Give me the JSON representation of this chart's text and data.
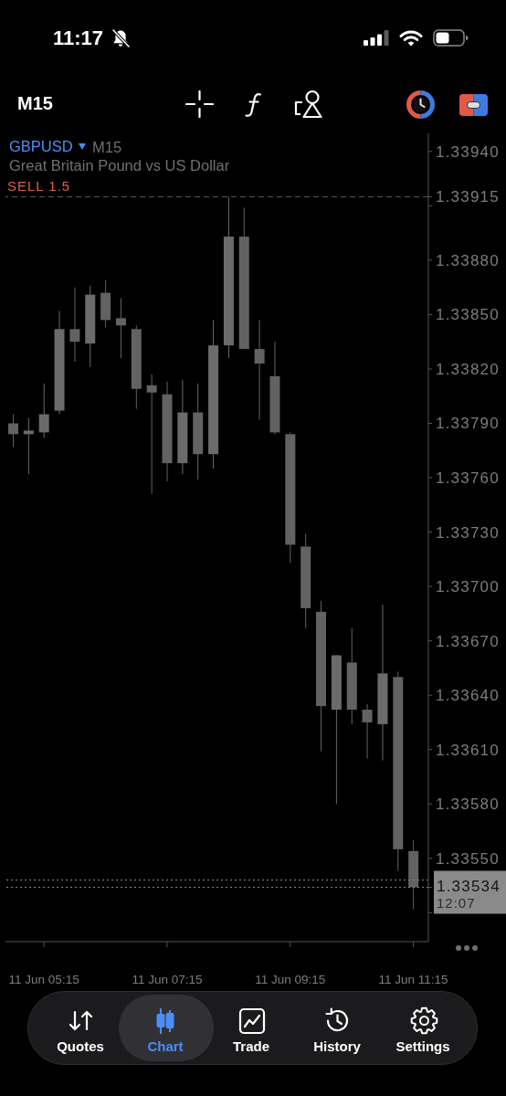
{
  "chart_data": {
    "type": "candlestick",
    "title": "GBPUSD",
    "subtitle": "Great Britain Pound vs US Dollar",
    "colors": [
      "#626262",
      "#6b6b6b",
      "#6b6b6b",
      "#6b6b6b",
      "#626262",
      "#6b6b6b",
      "#626262",
      "#626262",
      "#626262",
      "#626262",
      "#626262",
      "#6b6b6b",
      "#626262",
      "#6b6b6b",
      "#6b6b6b",
      "#626262",
      "#626262",
      "#626262",
      "#626262",
      "#626262",
      "#626262",
      "#6b6b6b",
      "#626262",
      "#626262",
      "#6b6b6b",
      "#626262",
      "#626262"
    ],
    "categories": [
      null,
      null,
      "11 Jun 05:15",
      null,
      null,
      null,
      null,
      null,
      null,
      null,
      "11 Jun 07:15",
      null,
      null,
      null,
      null,
      null,
      null,
      null,
      "11 Jun 09:15",
      null,
      null,
      null,
      null,
      null,
      null,
      null,
      "11 Jun 11:15"
    ],
    "ohlc": [
      [
        1.3379,
        1.33795,
        1.33777,
        1.33784
      ],
      [
        1.33784,
        1.33793,
        1.33762,
        1.33786
      ],
      [
        1.33785,
        1.33812,
        1.33782,
        1.33795
      ],
      [
        1.33797,
        1.33852,
        1.33795,
        1.33842
      ],
      [
        1.33842,
        1.33865,
        1.33824,
        1.33835
      ],
      [
        1.33834,
        1.33866,
        1.33821,
        1.33861
      ],
      [
        1.33862,
        1.33869,
        1.33843,
        1.33847
      ],
      [
        1.33848,
        1.33859,
        1.33826,
        1.33844
      ],
      [
        1.33842,
        1.33844,
        1.33798,
        1.33809
      ],
      [
        1.33811,
        1.33817,
        1.33751,
        1.33807
      ],
      [
        1.33806,
        1.33813,
        1.33758,
        1.33768
      ],
      [
        1.33768,
        1.33814,
        1.33762,
        1.33796
      ],
      [
        1.33796,
        1.33812,
        1.33759,
        1.33773
      ],
      [
        1.33773,
        1.33847,
        1.33765,
        1.33833
      ],
      [
        1.33833,
        1.33915,
        1.33826,
        1.33893
      ],
      [
        1.33893,
        1.33909,
        1.33831,
        1.33831
      ],
      [
        1.33831,
        1.33847,
        1.33792,
        1.33823
      ],
      [
        1.33816,
        1.33835,
        1.33784,
        1.33785
      ],
      [
        1.33784,
        1.33785,
        1.33713,
        1.33723
      ],
      [
        1.33722,
        1.33729,
        1.33677,
        1.33688
      ],
      [
        1.33686,
        1.33692,
        1.33609,
        1.33634
      ],
      [
        1.33632,
        1.33662,
        1.3358,
        1.33662
      ],
      [
        1.33658,
        1.33677,
        1.33624,
        1.33632
      ],
      [
        1.33632,
        1.33635,
        1.33605,
        1.33625
      ],
      [
        1.33624,
        1.3369,
        1.33604,
        1.33652
      ],
      [
        1.3365,
        1.33653,
        1.33543,
        1.33555
      ],
      [
        1.33554,
        1.3356,
        1.33522,
        1.33534
      ]
    ],
    "ylim": [
      1.33504,
      1.3395
    ],
    "yticks": [
      {
        "value": 1.3394,
        "label": "1.33940"
      },
      {
        "value": 1.33915,
        "label": "1.33915"
      },
      {
        "value": 1.3391,
        "label": null
      },
      {
        "value": 1.3388,
        "label": "1.33880"
      },
      {
        "value": 1.3385,
        "label": "1.33850"
      },
      {
        "value": 1.3382,
        "label": "1.33820"
      },
      {
        "value": 1.3379,
        "label": "1.33790"
      },
      {
        "value": 1.3376,
        "label": "1.33760"
      },
      {
        "value": 1.3373,
        "label": "1.33730"
      },
      {
        "value": 1.337,
        "label": "1.33700"
      },
      {
        "value": 1.3367,
        "label": "1.33670"
      },
      {
        "value": 1.3364,
        "label": "1.33640"
      },
      {
        "value": 1.3361,
        "label": "1.33610"
      },
      {
        "value": 1.3358,
        "label": "1.33580"
      },
      {
        "value": 1.3355,
        "label": "1.33550"
      },
      {
        "value": 1.33534,
        "label": "1.33534"
      },
      {
        "value": 1.3352,
        "label": null
      }
    ],
    "ref_lines": [
      {
        "axis": "y",
        "value": 1.33915,
        "label": "SELL 1.5",
        "color": "#5a5a5a",
        "line_style": "dashed"
      },
      {
        "axis": "y",
        "value": 1.33538,
        "color": "#8a8a8a",
        "line_style": "dotted"
      },
      {
        "axis": "y",
        "value": 1.33534,
        "color": "#8a8a8a",
        "line_style": "dotted"
      }
    ],
    "annotations": [
      "11:17",
      "M15",
      "M15",
      "Quotes",
      "Chart",
      "Trade",
      "History",
      "Settings",
      "12:07"
    ]
  }
}
